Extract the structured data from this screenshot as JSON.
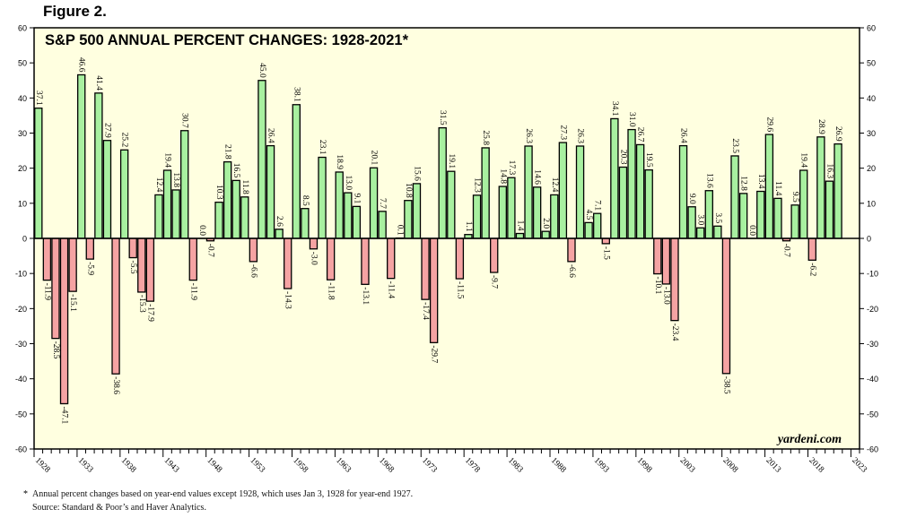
{
  "figure_label": "Figure 2.",
  "footnote": {
    "star": "*",
    "line1": "Annual percent changes based on year-end values except 1928, which uses Jan 3, 1928 for year-end 1927.",
    "line2": "Source: Standard & Poor’s and Haver Analytics."
  },
  "colors": {
    "background": "#ffffe0",
    "positive": "#a8f0a0",
    "negative": "#f5a3a3",
    "bar_stroke": "#000000"
  },
  "chart_data": {
    "type": "bar",
    "title": "S&P 500 ANNUAL PERCENT CHANGES: 1928-2021*",
    "watermark": "yardeni.com",
    "xlabel": "",
    "ylabel": "",
    "ylim": [
      -60,
      60
    ],
    "yticks": [
      -60,
      -50,
      -40,
      -30,
      -20,
      -10,
      0,
      10,
      20,
      30,
      40,
      50,
      60
    ],
    "xticks": [
      "1928",
      "1933",
      "1938",
      "1943",
      "1948",
      "1953",
      "1958",
      "1963",
      "1968",
      "1973",
      "1978",
      "1983",
      "1988",
      "1993",
      "1998",
      "2003",
      "2008",
      "2013",
      "2018",
      "2023"
    ],
    "xlim": [
      1928,
      2023
    ],
    "grid": false,
    "categories": [
      1928,
      1929,
      1930,
      1931,
      1932,
      1933,
      1934,
      1935,
      1936,
      1937,
      1938,
      1939,
      1940,
      1941,
      1942,
      1943,
      1944,
      1945,
      1946,
      1947,
      1948,
      1949,
      1950,
      1951,
      1952,
      1953,
      1954,
      1955,
      1956,
      1957,
      1958,
      1959,
      1960,
      1961,
      1962,
      1963,
      1964,
      1965,
      1966,
      1967,
      1968,
      1969,
      1970,
      1971,
      1972,
      1973,
      1974,
      1975,
      1976,
      1977,
      1978,
      1979,
      1980,
      1981,
      1982,
      1983,
      1984,
      1985,
      1986,
      1987,
      1988,
      1989,
      1990,
      1991,
      1992,
      1993,
      1994,
      1995,
      1996,
      1997,
      1998,
      1999,
      2000,
      2001,
      2002,
      2003,
      2004,
      2005,
      2006,
      2007,
      2008,
      2009,
      2010,
      2011,
      2012,
      2013,
      2014,
      2015,
      2016,
      2017,
      2018,
      2019,
      2020,
      2021
    ],
    "values": [
      37.1,
      -11.9,
      -28.5,
      -47.1,
      -15.1,
      46.6,
      -5.9,
      41.4,
      27.9,
      -38.6,
      25.2,
      -5.5,
      -15.3,
      -17.9,
      12.4,
      19.4,
      13.8,
      30.7,
      -11.9,
      0.0,
      -0.7,
      10.3,
      21.8,
      16.5,
      11.8,
      -6.6,
      45.0,
      26.4,
      2.6,
      -14.3,
      38.1,
      8.5,
      -3.0,
      23.1,
      -11.8,
      18.9,
      13.0,
      9.1,
      -13.1,
      20.1,
      7.7,
      -11.4,
      0.1,
      10.8,
      15.6,
      -17.4,
      -29.7,
      31.5,
      19.1,
      -11.5,
      1.1,
      12.3,
      25.8,
      -9.7,
      14.8,
      17.3,
      1.4,
      26.3,
      14.6,
      2.0,
      12.4,
      27.3,
      -6.6,
      26.3,
      4.5,
      7.1,
      -1.5,
      34.1,
      20.3,
      31.0,
      26.7,
      19.5,
      -10.1,
      -13.0,
      -23.4,
      26.4,
      9.0,
      3.0,
      13.6,
      3.5,
      -38.5,
      23.5,
      12.8,
      0.0,
      13.4,
      29.6,
      11.4,
      -0.7,
      9.5,
      19.4,
      -6.2,
      28.9,
      16.3,
      26.9
    ],
    "labels": [
      "37.1",
      "-11.9",
      "-28.5",
      "-47.1",
      "-15.1",
      "46.6",
      "-5.9",
      "41.4",
      "27.9",
      "-38.6",
      "25.2",
      "-5.5",
      "-15.3",
      "-17.9",
      "12.4",
      "19.4",
      "13.8",
      "30.7",
      "-11.9",
      "0.0",
      "-0.7",
      "10.3",
      "21.8",
      "16.5",
      "11.8",
      "-6.6",
      "45.0",
      "26.4",
      "2.6",
      "-14.3",
      "38.1",
      "8.5",
      "-3.0",
      "23.1",
      "-11.8",
      "18.9",
      "13.0",
      "9.1",
      "-13.1",
      "20.1",
      "7.7",
      "-11.4",
      "0.1",
      "10.8",
      "15.6",
      "-17.4",
      "-29.7",
      "31.5",
      "19.1",
      "-11.5",
      "1.1",
      "12.3",
      "25.8",
      "-9.7",
      "14.8",
      "17.3",
      "1.4",
      "26.3",
      "14.6",
      "2.0",
      "12.4",
      "27.3",
      "-6.6",
      "26.3",
      "4.5",
      "7.1",
      "-1.5",
      "34.1",
      "20.3",
      "31.0",
      "26.7",
      "19.5",
      "-10.1",
      "-13.0",
      "-23.4",
      "26.4",
      "9.0",
      "3.0",
      "13.6",
      "3.5",
      "-38.5",
      "23.5",
      "12.8",
      "0.0",
      "13.4",
      "29.6",
      "11.4",
      "-0.7",
      "9.5",
      "19.4",
      "-6.2",
      "28.9",
      "16.3",
      "26.9"
    ]
  }
}
